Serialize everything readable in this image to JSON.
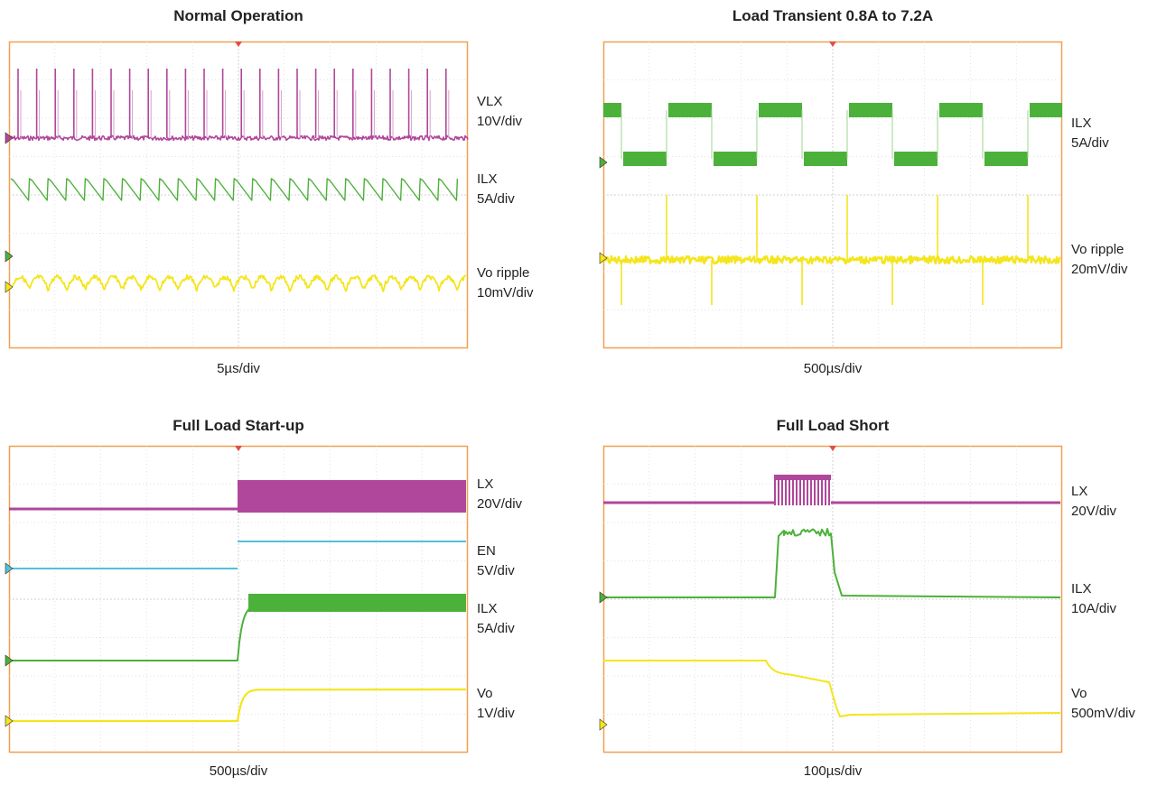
{
  "colors": {
    "frame": "#f0a050",
    "grid": "#d9d9d9",
    "magenta": "#b0479a",
    "green": "#4cb13a",
    "yellow": "#f4e51c",
    "cyan": "#4fc1d8"
  },
  "chart_data": [
    {
      "type": "line",
      "title": "Normal Operation",
      "time_per_div": "5µs/div",
      "grid": true,
      "series": [
        {
          "name": "VLX",
          "scale": "10V/div",
          "color": "magenta",
          "shape": "switching-spikes"
        },
        {
          "name": "ILX",
          "scale": "5A/div",
          "color": "green",
          "shape": "sawtooth"
        },
        {
          "name": "Vo ripple",
          "scale": "10mV/div",
          "color": "yellow",
          "shape": "ripple"
        }
      ]
    },
    {
      "type": "line",
      "title": "Load Transient 0.8A to 7.2A",
      "time_per_div": "500µs/div",
      "grid": true,
      "series": [
        {
          "name": "ILX",
          "scale": "5A/div",
          "color": "green",
          "shape": "square-wave"
        },
        {
          "name": "Vo ripple",
          "scale": "20mV/div",
          "color": "yellow",
          "shape": "transient-spikes"
        }
      ]
    },
    {
      "type": "line",
      "title": "Full Load Start-up",
      "time_per_div": "500µs/div",
      "grid": true,
      "series": [
        {
          "name": "LX",
          "scale": "20V/div",
          "color": "magenta",
          "shape": "step-to-switching"
        },
        {
          "name": "EN",
          "scale": "5V/div",
          "color": "cyan",
          "shape": "step"
        },
        {
          "name": "ILX",
          "scale": "5A/div",
          "color": "green",
          "shape": "ramp-step"
        },
        {
          "name": "Vo",
          "scale": "1V/div",
          "color": "yellow",
          "shape": "ramp-step"
        }
      ]
    },
    {
      "type": "line",
      "title": "Full Load Short",
      "time_per_div": "100µs/div",
      "grid": true,
      "series": [
        {
          "name": "LX",
          "scale": "20V/div",
          "color": "magenta",
          "shape": "burst"
        },
        {
          "name": "ILX",
          "scale": "10A/div",
          "color": "green",
          "shape": "pulse"
        },
        {
          "name": "Vo",
          "scale": "500mV/div",
          "color": "yellow",
          "shape": "collapse"
        }
      ]
    }
  ]
}
